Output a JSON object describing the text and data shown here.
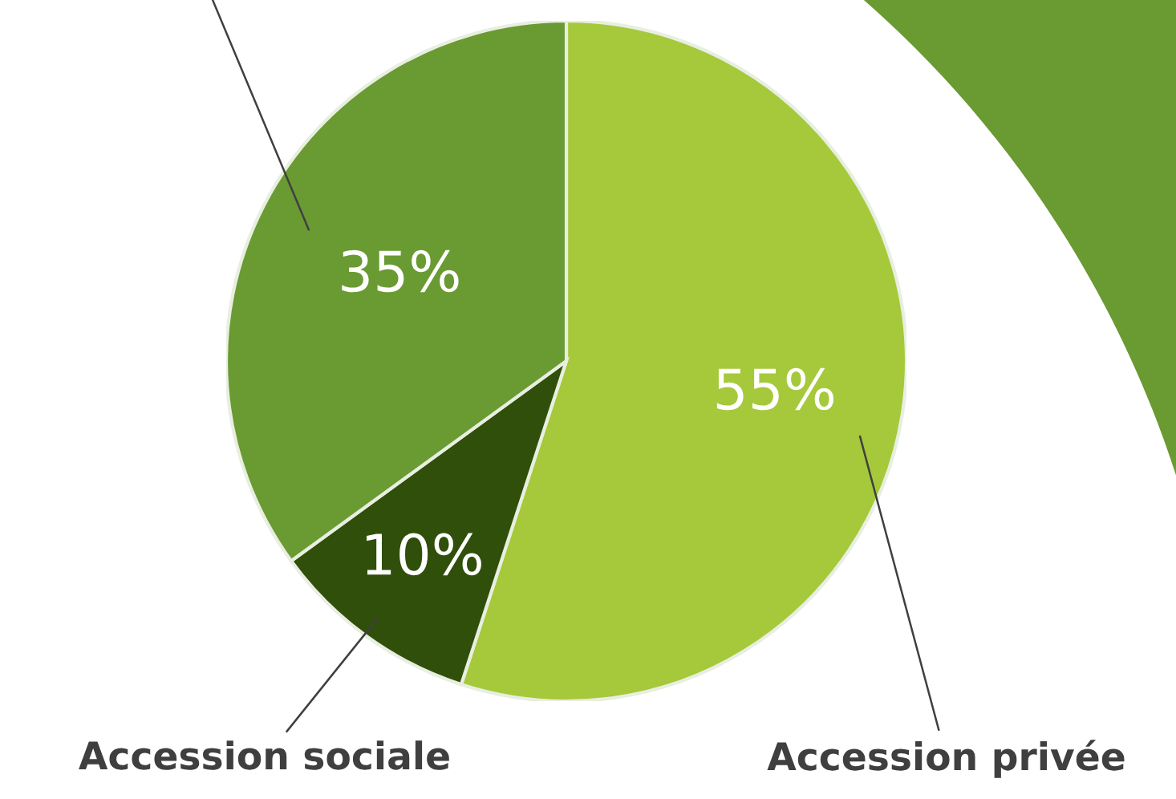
{
  "chart_data": {
    "type": "pie",
    "categories": [
      "Accession privée",
      "Accession sociale",
      null
    ],
    "values": [
      55,
      10,
      35
    ],
    "value_labels": [
      "55%",
      "10%",
      "35%"
    ],
    "colors": [
      "#a5c93a",
      "#2f4f0a",
      "#6a9a32"
    ],
    "legend": false
  }
}
